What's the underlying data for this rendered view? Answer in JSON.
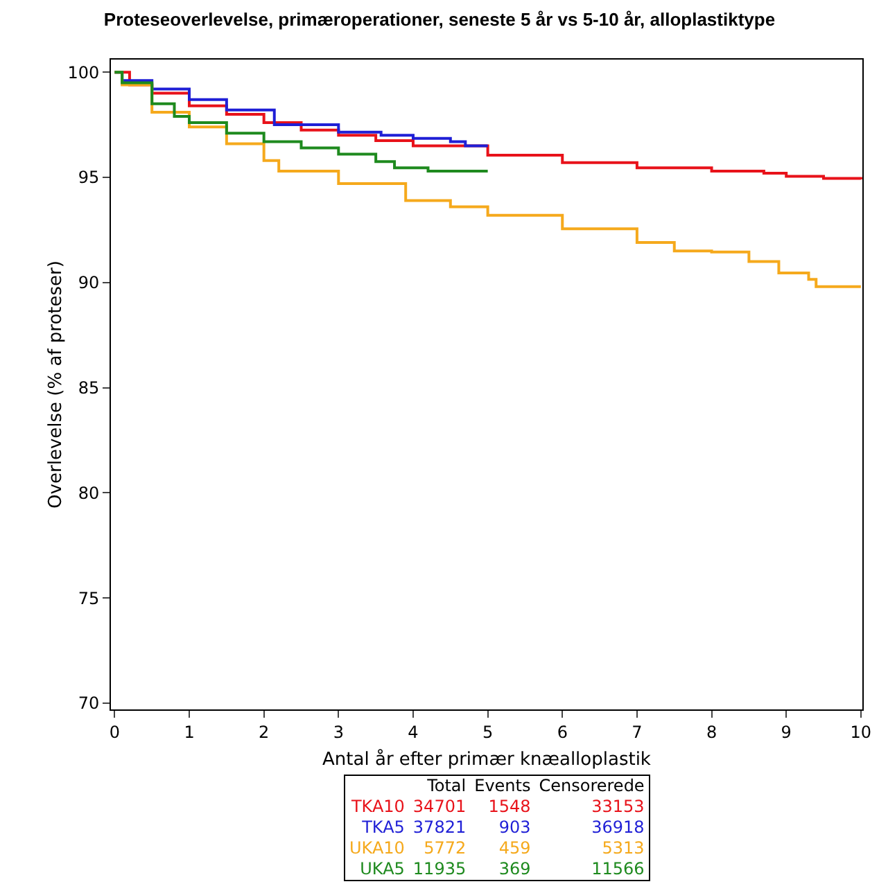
{
  "chart_data": {
    "type": "step",
    "title": "Proteseoverlevelse, primæroperationer, seneste 5 år vs 5-10 år, alloplastiktype",
    "xlabel": "Antal år efter primær knæalloplastik",
    "ylabel": "Overlevelse (% af proteser)",
    "xlim": [
      -0.05,
      10.02
    ],
    "xticks": [
      0,
      1,
      2,
      3,
      4,
      5,
      6,
      7,
      8,
      9,
      10
    ],
    "ylim": [
      69.7,
      100.6
    ],
    "yticks": [
      70,
      75,
      80,
      85,
      90,
      95,
      100
    ],
    "grid": false,
    "legend": false,
    "series": [
      {
        "name": "TKA10",
        "color": "#e8121a",
        "x": [
          0,
          0.2,
          0.5,
          1,
          1.5,
          2,
          2.5,
          3,
          3.5,
          4,
          5,
          6,
          7,
          8,
          8.7,
          9,
          9.5,
          10
        ],
        "values": [
          100,
          99.4,
          99.0,
          98.4,
          98.0,
          97.6,
          97.25,
          97.0,
          96.75,
          96.5,
          96.05,
          95.7,
          95.45,
          95.3,
          95.2,
          95.05,
          94.95,
          94.9
        ]
      },
      {
        "name": "TKA5",
        "color": "#1f1fd6",
        "x": [
          0,
          0.1,
          0.5,
          1,
          1.5,
          2.14,
          3,
          3.57,
          4,
          4.5,
          4.7,
          5
        ],
        "values": [
          100,
          99.6,
          99.2,
          98.7,
          98.2,
          97.5,
          97.15,
          97.0,
          96.85,
          96.7,
          96.5,
          96.5
        ]
      },
      {
        "name": "UKA10",
        "color": "#f5a91c",
        "x": [
          0,
          0.1,
          0.5,
          1,
          1.5,
          2,
          2.2,
          3,
          3.9,
          4.5,
          5,
          6,
          7,
          7.5,
          8,
          8.5,
          8.9,
          9.3,
          9.4,
          10
        ],
        "values": [
          100,
          99.4,
          98.1,
          97.4,
          96.6,
          95.8,
          95.3,
          94.7,
          93.9,
          93.6,
          93.2,
          92.55,
          91.9,
          91.5,
          91.45,
          91.0,
          90.45,
          90.15,
          89.8,
          89.8
        ]
      },
      {
        "name": "UKA5",
        "color": "#1e8a1e",
        "x": [
          0,
          0.1,
          0.5,
          0.8,
          1,
          1.5,
          2,
          2.5,
          3,
          3.5,
          3.75,
          4.2,
          5
        ],
        "values": [
          100,
          99.5,
          98.5,
          97.9,
          97.6,
          97.1,
          96.7,
          96.4,
          96.1,
          95.75,
          95.45,
          95.3,
          95.3
        ]
      }
    ],
    "annotations": [
      "Total",
      "Events",
      "Censorerede",
      "34701",
      "1548",
      "33153",
      "37821",
      "903",
      "36918",
      "5772",
      "459",
      "5313",
      "11935",
      "369",
      "11566"
    ]
  }
}
